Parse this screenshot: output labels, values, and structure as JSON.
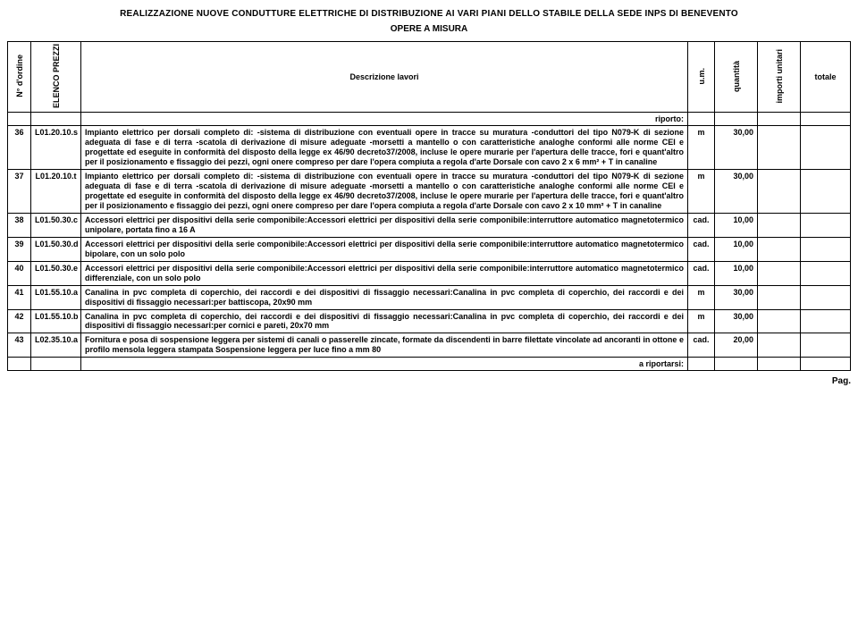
{
  "title": "REALIZZAZIONE NUOVE CONDUTTURE ELETTRICHE DI DISTRIBUZIONE AI VARI PIANI DELLO STABILE DELLA SEDE INPS DI BENEVENTO",
  "subtitle": "OPERE A MISURA",
  "headers": {
    "ord": "N° d'ordine",
    "cod": "ELENCO PREZZI",
    "desc": "Descrizione lavori",
    "um": "u.m.",
    "qty": "quantità",
    "unit": "importi unitari",
    "tot": "totale"
  },
  "riporto": "riporto:",
  "a_riportarsi": "a riportarsi:",
  "rows": [
    {
      "n": "36",
      "code": "L01.20.10.s",
      "desc": "Impianto elettrico per dorsali completo di: -sistema di distribuzione con eventuali opere in tracce su muratura -conduttori del tipo N079-K di sezione adeguata di fase e di terra -scatola di derivazione di misure adeguate -morsetti a mantello o con caratteristiche analoghe conformi alle norme CEI e progettate ed eseguite in conformità del disposto della legge ex 46/90 decreto37/2008, incluse le opere murarie per l'apertura delle tracce, fori e quant'altro per il posizionamento e fissaggio dei pezzi, ogni onere compreso per dare l'opera compiuta a regola d'arte Dorsale con cavo 2 x 6 mm² + T in canaline",
      "um": "m",
      "qty": "30,00",
      "unit": "",
      "tot": ""
    },
    {
      "n": "37",
      "code": "L01.20.10.t",
      "desc": "Impianto elettrico per dorsali completo di: -sistema di distribuzione con eventuali opere in tracce su muratura -conduttori del tipo N079-K di sezione adeguata di fase e di terra -scatola di derivazione di misure adeguate -morsetti a mantello o con caratteristiche analoghe conformi alle norme CEI e progettate ed eseguite in conformità del disposto della legge ex 46/90 decreto37/2008, incluse le opere murarie per l'apertura delle tracce, fori e quant'altro per il posizionamento e fissaggio dei pezzi, ogni onere compreso per dare l'opera compiuta a regola d'arte Dorsale con cavo 2 x 10 mm² + T in canaline",
      "um": "m",
      "qty": "30,00",
      "unit": "",
      "tot": ""
    },
    {
      "n": "38",
      "code": "L01.50.30.c",
      "desc": "Accessori elettrici per dispositivi della serie componibile:Accessori elettrici per dispositivi della serie componibile:interruttore automatico magnetotermico unipolare, portata fino a 16 A",
      "um": "cad.",
      "qty": "10,00",
      "unit": "",
      "tot": ""
    },
    {
      "n": "39",
      "code": "L01.50.30.d",
      "desc": "Accessori elettrici per dispositivi della serie componibile:Accessori elettrici per dispositivi della serie componibile:interruttore automatico magnetotermico bipolare, con un solo polo",
      "um": "cad.",
      "qty": "10,00",
      "unit": "",
      "tot": ""
    },
    {
      "n": "40",
      "code": "L01.50.30.e",
      "desc": "Accessori elettrici per dispositivi della serie componibile:Accessori elettrici per dispositivi della serie componibile:interruttore automatico magnetotermico differenziale, con un solo polo",
      "um": "cad.",
      "qty": "10,00",
      "unit": "",
      "tot": ""
    },
    {
      "n": "41",
      "code": "L01.55.10.a",
      "desc": "Canalina in pvc completa di coperchio, dei raccordi e dei dispositivi di fissaggio necessari:Canalina in pvc completa di coperchio, dei raccordi e dei dispositivi di fissaggio necessari:per battiscopa, 20x90 mm",
      "um": "m",
      "qty": "30,00",
      "unit": "",
      "tot": ""
    },
    {
      "n": "42",
      "code": "L01.55.10.b",
      "desc": "Canalina in pvc completa di coperchio, dei raccordi e dei dispositivi di fissaggio necessari:Canalina in pvc completa di coperchio, dei raccordi e dei dispositivi di fissaggio necessari:per cornici e pareti, 20x70 mm",
      "um": "m",
      "qty": "30,00",
      "unit": "",
      "tot": ""
    },
    {
      "n": "43",
      "code": "L02.35.10.a",
      "desc": "Fornitura e posa di sospensione leggera per sistemi di canali o passerelle zincate, formate da discendenti in barre filettate vincolate ad ancoranti in ottone e profilo mensola leggera stampata Sospensione leggera per luce fino a mm 80",
      "um": "cad.",
      "qty": "20,00",
      "unit": "",
      "tot": ""
    }
  ],
  "footer": "Pag."
}
